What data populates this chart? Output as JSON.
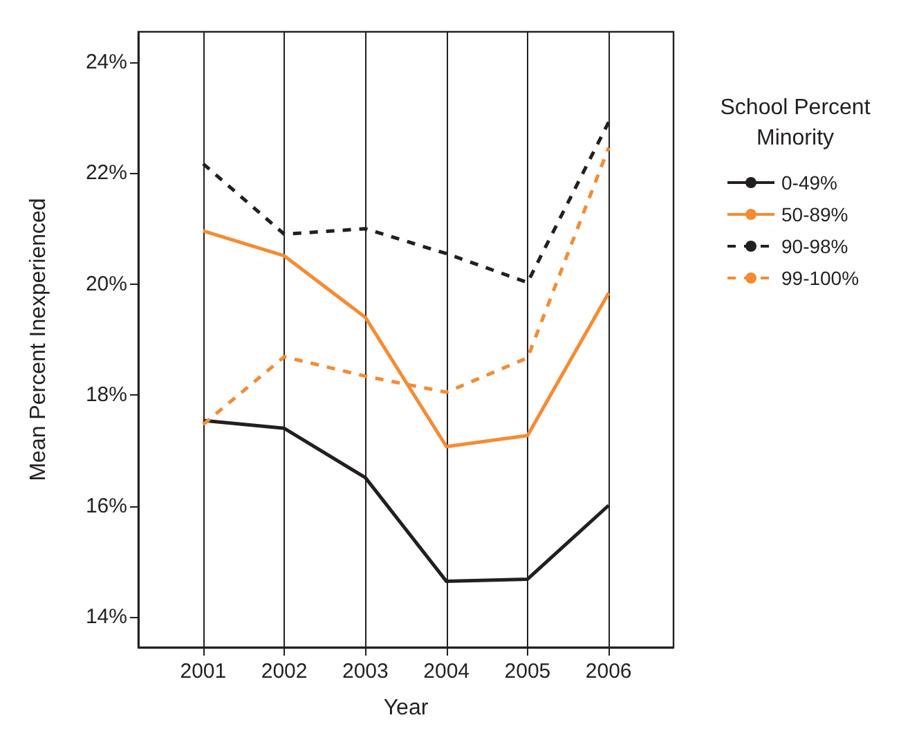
{
  "chart_data": {
    "type": "line",
    "xlabel": "Year",
    "ylabel": "Mean Percent Inexperienced",
    "legend_title": "School Percent\nMinority",
    "x": [
      2001,
      2002,
      2003,
      2004,
      2005,
      2006
    ],
    "xlim": [
      2000.2,
      2006.8
    ],
    "xticks": [
      2001,
      2002,
      2003,
      2004,
      2005,
      2006
    ],
    "ylim": [
      13.45,
      24.55
    ],
    "yticks": [
      {
        "value": 14,
        "label": "14%"
      },
      {
        "value": 16,
        "label": "16%"
      },
      {
        "value": 18,
        "label": "18%"
      },
      {
        "value": 20,
        "label": "20%"
      },
      {
        "value": 22,
        "label": "22%"
      },
      {
        "value": 24,
        "label": "24%"
      }
    ],
    "grid": "x",
    "legend": "right",
    "marker": "none",
    "series": [
      {
        "name": "0-49%",
        "color": "#231f20",
        "line_style": "solid",
        "values": [
          17.54,
          17.4,
          16.51,
          14.64,
          14.68,
          16.01
        ]
      },
      {
        "name": "50-89%",
        "color": "#f68b33",
        "line_style": "solid",
        "values": [
          20.96,
          20.51,
          19.4,
          17.07,
          17.27,
          19.84
        ]
      },
      {
        "name": "90-98%",
        "color": "#231f20",
        "line_style": "dashed",
        "values": [
          22.17,
          20.9,
          21.0,
          20.55,
          20.03,
          22.92
        ]
      },
      {
        "name": "99-100%",
        "color": "#f68b33",
        "line_style": "dashed",
        "values": [
          17.47,
          18.69,
          18.34,
          18.05,
          18.67,
          22.46
        ]
      }
    ]
  }
}
